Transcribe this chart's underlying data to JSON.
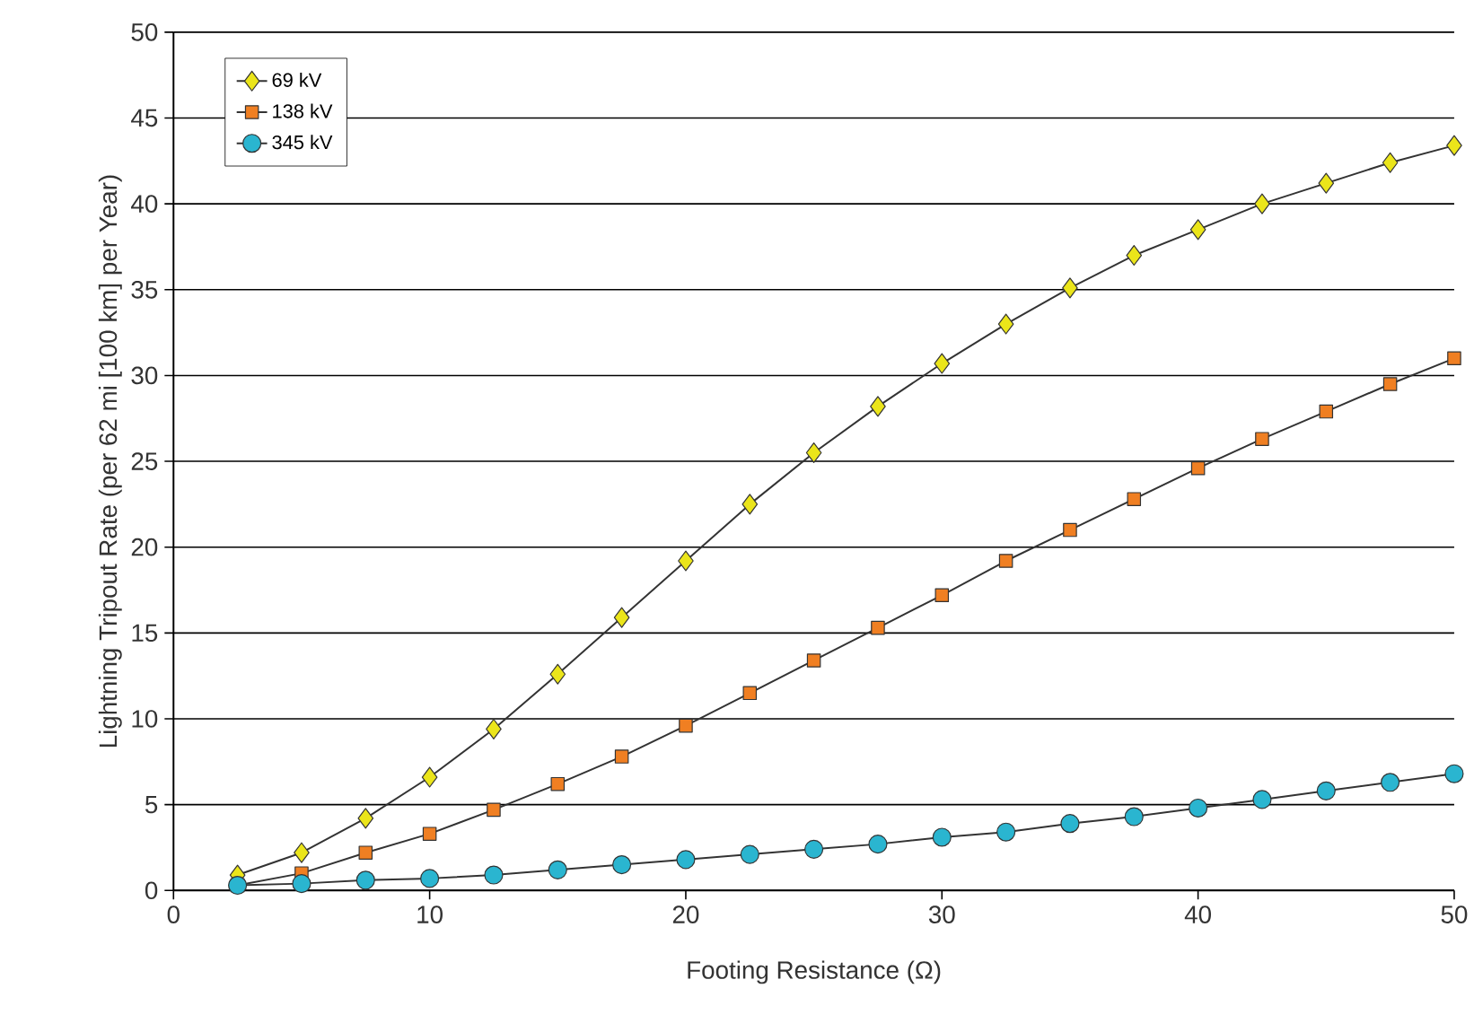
{
  "chart_data": {
    "type": "line",
    "xlabel": "Footing Resistance (Ω)",
    "ylabel": "Lightning Tripout Rate (per 62 mi [100 km] per Year)",
    "x": [
      2.5,
      5,
      7.5,
      10,
      12.5,
      15,
      17.5,
      20,
      22.5,
      25,
      27.5,
      30,
      32.5,
      35,
      37.5,
      40,
      42.5,
      45,
      47.5,
      50
    ],
    "series": [
      {
        "name": "69 kV",
        "color": "#ebe51a",
        "marker": "diamond",
        "values": [
          0.9,
          2.2,
          4.2,
          6.6,
          9.4,
          12.6,
          15.9,
          19.2,
          22.5,
          25.5,
          28.2,
          30.7,
          33.0,
          35.1,
          37.0,
          38.5,
          40.0,
          41.2,
          42.4,
          43.4
        ]
      },
      {
        "name": "138 kV",
        "color": "#f07f22",
        "marker": "square",
        "values": [
          0.3,
          1.0,
          2.2,
          3.3,
          4.7,
          6.2,
          7.8,
          9.6,
          11.5,
          13.4,
          15.3,
          17.2,
          19.2,
          21.0,
          22.8,
          24.6,
          26.3,
          27.9,
          29.5,
          31.0
        ]
      },
      {
        "name": "345 kV",
        "color": "#2ab5d0",
        "marker": "circle",
        "values": [
          0.3,
          0.4,
          0.6,
          0.7,
          0.9,
          1.2,
          1.5,
          1.8,
          2.1,
          2.4,
          2.7,
          3.1,
          3.4,
          3.9,
          4.3,
          4.8,
          5.3,
          5.8,
          6.3,
          6.8
        ]
      }
    ],
    "xlim": [
      0,
      50
    ],
    "xticks": [
      0,
      10,
      20,
      30,
      40,
      50
    ],
    "ylim": [
      0,
      50
    ],
    "yticks": [
      0,
      5,
      10,
      15,
      20,
      25,
      30,
      35,
      40,
      45,
      50
    ],
    "grid": "y",
    "legend": "top left",
    "line_style": "solid"
  }
}
